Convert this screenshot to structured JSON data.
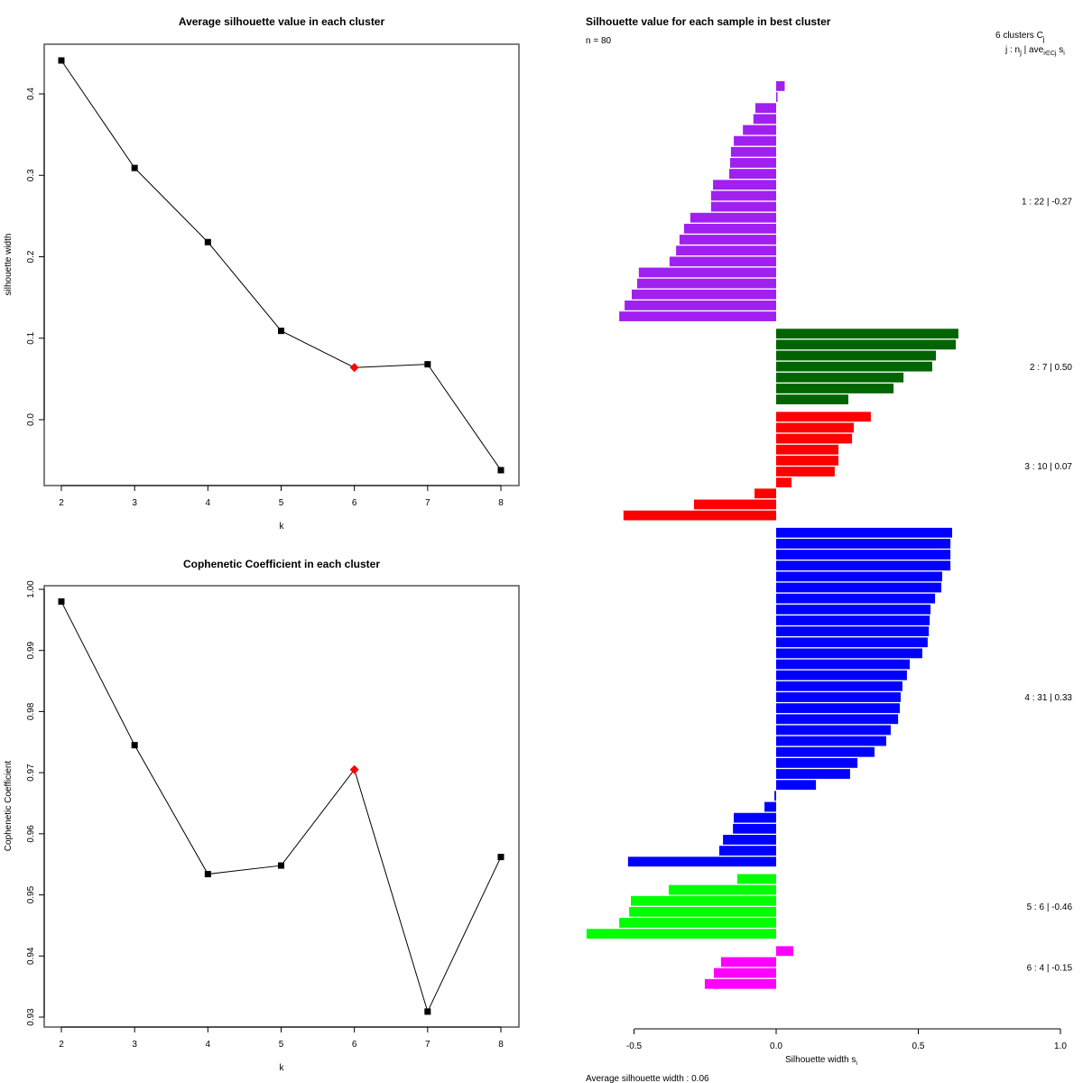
{
  "chart_data": [
    {
      "type": "line",
      "title": "Average silhouette value in each cluster",
      "xlabel": "k",
      "ylabel": "silhouette width",
      "x": [
        2,
        3,
        4,
        5,
        6,
        7,
        8
      ],
      "values": [
        0.441,
        0.309,
        0.218,
        0.109,
        0.064,
        0.068,
        -0.062
      ],
      "highlight_k": 6,
      "highlight_color": "#ff0000",
      "xticks": [
        "2",
        "3",
        "4",
        "5",
        "6",
        "7",
        "8"
      ],
      "yticks": [
        "0.0",
        "0.1",
        "0.2",
        "0.3",
        "0.4"
      ],
      "ytick_values": [
        0.0,
        0.1,
        0.2,
        0.3,
        0.4
      ],
      "xlim": [
        1.77,
        8.23
      ],
      "ylim": [
        -0.08,
        0.46
      ],
      "grid": false
    },
    {
      "type": "line",
      "title": "Cophenetic Coefficient in each cluster",
      "xlabel": "k",
      "ylabel": "Cophenetic Coefficient",
      "x": [
        2,
        3,
        4,
        5,
        6,
        7,
        8
      ],
      "values": [
        0.998,
        0.9745,
        0.9534,
        0.9548,
        0.9705,
        0.9309,
        0.9562
      ],
      "highlight_k": 6,
      "highlight_color": "#ff0000",
      "xticks": [
        "2",
        "3",
        "4",
        "5",
        "6",
        "7",
        "8"
      ],
      "yticks": [
        "0.93",
        "0.94",
        "0.95",
        "0.96",
        "0.97",
        "0.98",
        "0.99",
        "1.00"
      ],
      "ytick_values": [
        0.93,
        0.94,
        0.95,
        0.96,
        0.97,
        0.98,
        0.99,
        1.0
      ],
      "xlim": [
        1.77,
        8.23
      ],
      "ylim": [
        0.9275,
        1.0015
      ],
      "grid": false
    },
    {
      "type": "bar",
      "orientation": "horizontal",
      "title": "Silhouette value for each sample in best cluster",
      "subtitle": "n = 80",
      "xlabel": "Silhouette width s",
      "xlabel_sub": "i",
      "xticks": [
        "-0.5",
        "0.0",
        "0.5",
        "1.0"
      ],
      "xtick_values": [
        -0.5,
        0.0,
        0.5,
        1.0
      ],
      "xlim": [
        -0.5,
        1.0
      ],
      "legend_header": "6  clusters  C",
      "legend_header_sub": "j",
      "legend_subheader": "j :  n",
      "legend_subheader_sub": "j",
      "legend_subheader_rest": " | ave",
      "legend_subheader_sub2": "i∈Cj",
      "legend_subheader_end": " s",
      "legend_subheader_end_sub": "i",
      "footer": "Average silhouette width :  0.06",
      "clusters": [
        {
          "id": 1,
          "n": 22,
          "avg": "-0.27",
          "label": "1 :   22  |  -0.27",
          "color": "#a020f0",
          "values": [
            0.03,
            0.005,
            -0.073,
            -0.08,
            -0.117,
            -0.149,
            -0.159,
            -0.162,
            -0.165,
            -0.222,
            -0.229,
            -0.229,
            -0.302,
            -0.324,
            -0.34,
            -0.352,
            -0.375,
            -0.483,
            -0.489,
            -0.508,
            -0.533,
            -0.552
          ]
        },
        {
          "id": 2,
          "n": 7,
          "avg": "0.50",
          "label": "2 :   7  |  0.50",
          "color": "#006400",
          "values": [
            0.641,
            0.632,
            0.562,
            0.549,
            0.448,
            0.413,
            0.254
          ]
        },
        {
          "id": 3,
          "n": 10,
          "avg": "0.07",
          "label": "3 :   10  |  0.07",
          "color": "#ff0000",
          "values": [
            0.333,
            0.273,
            0.267,
            0.219,
            0.219,
            0.206,
            0.054,
            -0.076,
            -0.289,
            -0.537
          ]
        },
        {
          "id": 4,
          "n": 31,
          "avg": "0.33",
          "label": "4 :   31  |  0.33",
          "color": "#0000ff",
          "values": [
            0.619,
            0.613,
            0.613,
            0.613,
            0.584,
            0.581,
            0.559,
            0.543,
            0.54,
            0.537,
            0.533,
            0.514,
            0.47,
            0.46,
            0.444,
            0.438,
            0.435,
            0.429,
            0.403,
            0.387,
            0.346,
            0.286,
            0.26,
            0.14,
            -0.006,
            -0.041,
            -0.149,
            -0.152,
            -0.187,
            -0.2,
            -0.521
          ]
        },
        {
          "id": 5,
          "n": 6,
          "avg": "-0.46",
          "label": "5 :   6  |  -0.46",
          "color": "#00ff00",
          "values": [
            -0.137,
            -0.378,
            -0.511,
            -0.517,
            -0.552,
            -0.667
          ]
        },
        {
          "id": 6,
          "n": 4,
          "avg": "-0.15",
          "label": "6 :   4  |  -0.15",
          "color": "#ff00ff",
          "values": [
            0.06,
            -0.194,
            -0.219,
            -0.251
          ]
        }
      ]
    }
  ]
}
